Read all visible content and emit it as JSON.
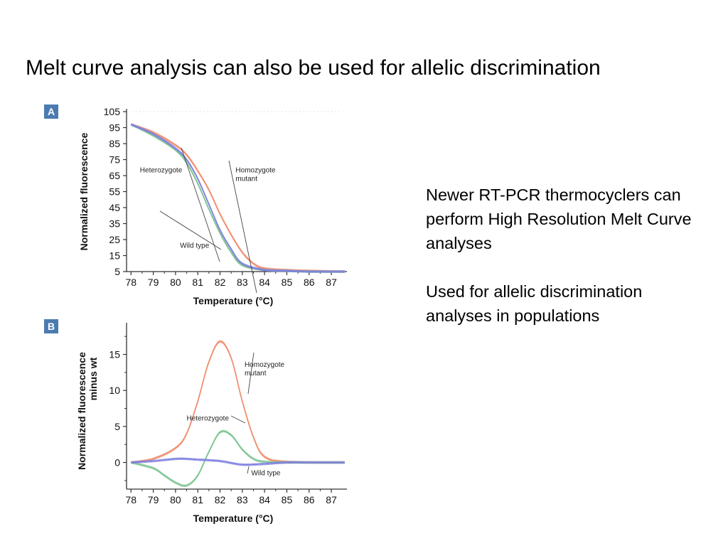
{
  "slide": {
    "title": "Melt curve analysis can also be used for allelic discrimination",
    "paragraphs": [
      "Newer RT-PCR thermocyclers can perform High Resolution Melt Curve analyses",
      "Used for allelic discrimination analyses in populations"
    ]
  },
  "colors": {
    "homozygote_mutant": "#f08a6a",
    "heterozygote": "#7cc48f",
    "wild_type": "#7c7ee0",
    "badge": "#4a7bb1"
  },
  "chart_data": [
    {
      "panel": "A",
      "type": "line",
      "xlabel": "Temperature (°C)",
      "ylabel": "Normalized fluorescence",
      "xlim": [
        77.8,
        87.7
      ],
      "ylim": [
        5,
        105
      ],
      "x_ticks": [
        "78",
        "79",
        "80",
        "81",
        "82",
        "83",
        "84",
        "85",
        "86",
        "87"
      ],
      "y_ticks": [
        "105",
        "95",
        "85",
        "75",
        "65",
        "55",
        "45",
        "35",
        "25",
        "15",
        "5"
      ],
      "series": [
        {
          "name": "Homozygote mutant",
          "color": "#f08a6a",
          "x": [
            78,
            79,
            80,
            80.5,
            81,
            81.5,
            82,
            82.5,
            83,
            83.5,
            84,
            85,
            86,
            87.6
          ],
          "y": [
            97,
            92,
            84,
            78,
            68,
            56,
            41,
            28,
            17,
            10,
            7,
            6,
            5.5,
            5
          ]
        },
        {
          "name": "Heterozygote",
          "color": "#7cc48f",
          "x": [
            78,
            79,
            80,
            80.5,
            81,
            81.5,
            82,
            82.5,
            83,
            84,
            85,
            86,
            87.6
          ],
          "y": [
            97,
            90,
            81,
            73,
            60,
            44,
            29,
            17,
            9,
            6,
            5.5,
            5,
            5
          ]
        },
        {
          "name": "Wild type",
          "color": "#7c7ee0",
          "x": [
            78,
            79,
            80,
            80.5,
            81,
            81.5,
            82,
            82.5,
            83,
            84,
            85,
            86,
            87.6
          ],
          "y": [
            97,
            91,
            82,
            75,
            63,
            47,
            31,
            19,
            10,
            6,
            5.5,
            5,
            5
          ]
        }
      ],
      "annotations": [
        {
          "lines": [
            "Heterozygote"
          ],
          "x": 78.4,
          "y": 67
        },
        {
          "lines": [
            "Homozygote",
            "mutant"
          ],
          "x": 82.7,
          "y": 67
        },
        {
          "lines": [
            "Wild type"
          ],
          "x": 80.2,
          "y": 20
        }
      ]
    },
    {
      "panel": "B",
      "type": "line",
      "xlabel": "Temperature (°C)",
      "ylabel": "Normalized fluorescence minus wt",
      "xlim": [
        77.8,
        87.7
      ],
      "ylim": [
        -3.7,
        19
      ],
      "x_ticks": [
        "78",
        "79",
        "80",
        "81",
        "82",
        "83",
        "84",
        "85",
        "86",
        "87"
      ],
      "y_ticks": [
        "15",
        "10",
        "5",
        "0"
      ],
      "series": [
        {
          "name": "Homozygote mutant",
          "color": "#f08a6a",
          "x": [
            78,
            79,
            80,
            80.5,
            81,
            81.5,
            82,
            82.5,
            83,
            83.5,
            84,
            85,
            87.6
          ],
          "y": [
            0,
            0.5,
            2,
            4,
            8.5,
            14,
            16.8,
            14.5,
            8.5,
            3.5,
            0.8,
            0.1,
            0
          ]
        },
        {
          "name": "Heterozygote",
          "color": "#7cc48f",
          "x": [
            78,
            79,
            79.5,
            80,
            80.5,
            81,
            81.5,
            82,
            82.5,
            83,
            83.5,
            84,
            85,
            87.6
          ],
          "y": [
            0,
            -0.8,
            -1.8,
            -2.8,
            -3.2,
            -1.8,
            1.5,
            4.2,
            3.8,
            1.8,
            0.5,
            0.1,
            0,
            0
          ]
        },
        {
          "name": "Wild type",
          "color": "#7c7ee0",
          "x": [
            78,
            79,
            80,
            80.5,
            81,
            82,
            83,
            84,
            85,
            86,
            87.6
          ],
          "y": [
            0,
            0.2,
            0.5,
            0.5,
            0.4,
            0.2,
            -0.3,
            -0.2,
            0,
            0,
            0
          ]
        }
      ],
      "annotations": [
        {
          "lines": [
            "Homozygote",
            "mutant"
          ],
          "x": 83.1,
          "y": 13.3
        },
        {
          "lines": [
            "Heterozygote"
          ],
          "x": 80.5,
          "y": 5.8
        },
        {
          "lines": [
            "Wild type"
          ],
          "x": 83.4,
          "y": -1.8
        }
      ]
    }
  ]
}
